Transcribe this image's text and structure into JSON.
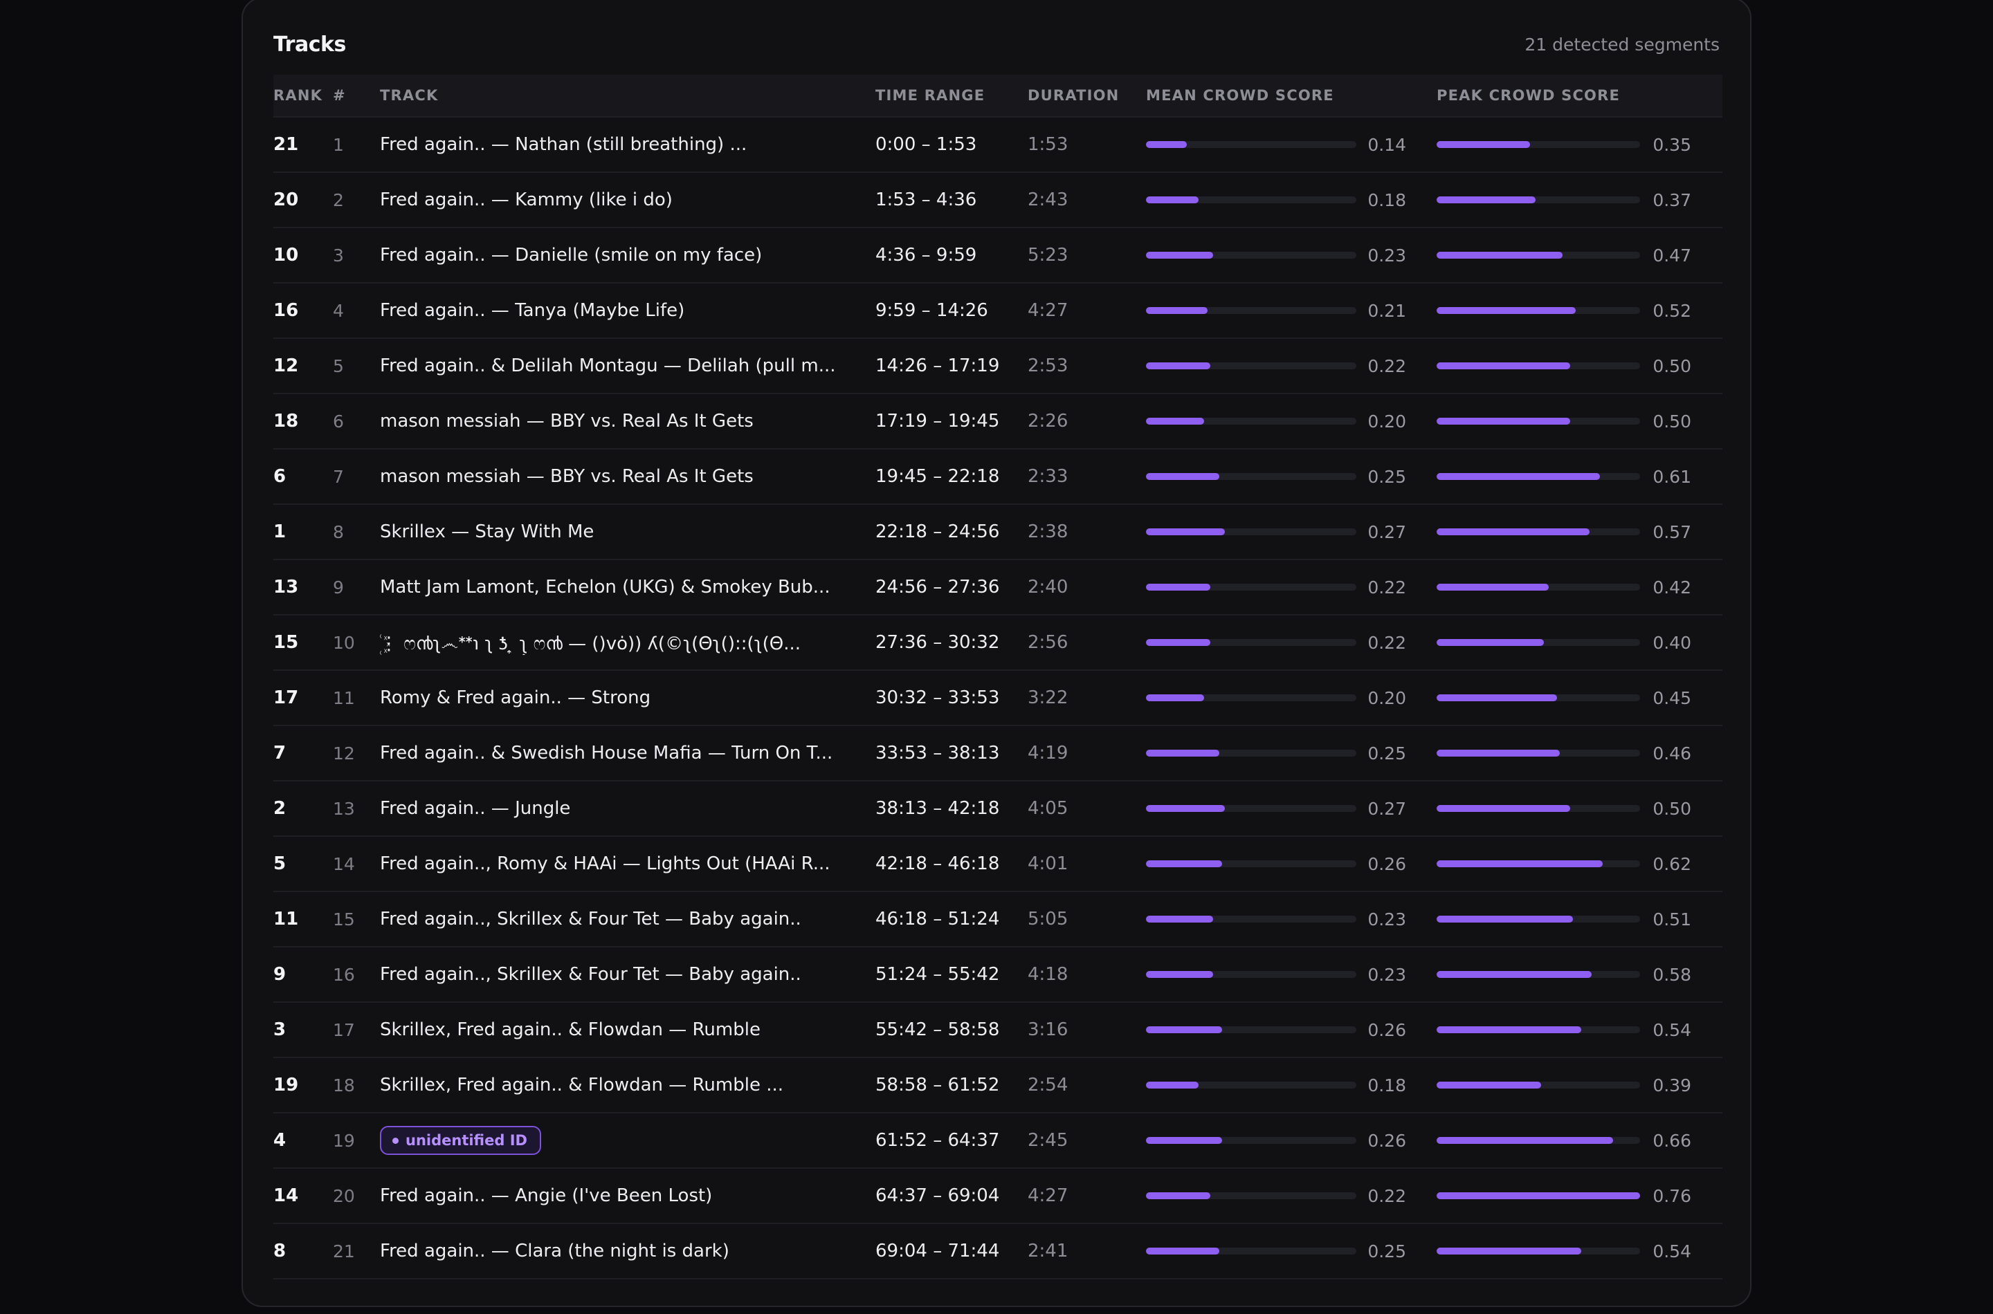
{
  "panel": {
    "title": "Tracks",
    "segment_count": "21 detected segments"
  },
  "columns": {
    "rank": "RANK",
    "num": "#",
    "track": "TRACK",
    "time_range": "TIME RANGE",
    "duration": "DURATION",
    "mean": "MEAN CROWD SCORE",
    "peak": "PEAK CROWD SCORE"
  },
  "accent_color": "#8e5ff0",
  "rows": [
    {
      "rank": "21",
      "num": "1",
      "track": "Fred again.. — Nathan (still breathing) ...",
      "time": "0:00 – 1:53",
      "duration": "1:53",
      "mean": "0.14",
      "peak": "0.35"
    },
    {
      "rank": "20",
      "num": "2",
      "track": "Fred again.. — Kammy (like i do)",
      "time": "1:53 – 4:36",
      "duration": "2:43",
      "mean": "0.18",
      "peak": "0.37"
    },
    {
      "rank": "10",
      "num": "3",
      "track": "Fred again.. — Danielle (smile on my face)",
      "time": "4:36 – 9:59",
      "duration": "5:23",
      "mean": "0.23",
      "peak": "0.47"
    },
    {
      "rank": "16",
      "num": "4",
      "track": "Fred again.. — Tanya (Maybe Life)",
      "time": "9:59 – 14:26",
      "duration": "4:27",
      "mean": "0.21",
      "peak": "0.52"
    },
    {
      "rank": "12",
      "num": "5",
      "track": "Fred again.. & Delilah Montagu — Delilah (pull m...",
      "time": "14:26 – 17:19",
      "duration": "2:53",
      "mean": "0.22",
      "peak": "0.50"
    },
    {
      "rank": "18",
      "num": "6",
      "track": "mason messiah — BBY vs. Real As It Gets",
      "time": "17:19 – 19:45",
      "duration": "2:26",
      "mean": "0.20",
      "peak": "0.50"
    },
    {
      "rank": "6",
      "num": "7",
      "track": "mason messiah — BBY vs. Real As It Gets",
      "time": "19:45 – 22:18",
      "duration": "2:33",
      "mean": "0.25",
      "peak": "0.61"
    },
    {
      "rank": "1",
      "num": "8",
      "track": "Skrillex — Stay With Me",
      "time": "22:18 – 24:56",
      "duration": "2:38",
      "mean": "0.27",
      "peak": "0.57"
    },
    {
      "rank": "13",
      "num": "9",
      "track": "Matt Jam Lamont, Echelon (UKG) & Smokey Bub...",
      "time": "24:56 – 27:36",
      "duration": "2:40",
      "mean": "0.22",
      "peak": "0.42"
    },
    {
      "rank": "15",
      "num": "10",
      "track": "꙰⋮ ෆ൯ʅ෴ᕯ℩ ʅ ƾ ͎ ʅ͎͎͎ ෆ൯ — ()vȯ))  ʎ(©ʅ(Θʅ()::(ʅ(Θ...",
      "time": "27:36 – 30:32",
      "duration": "2:56",
      "mean": "0.22",
      "peak": "0.40"
    },
    {
      "rank": "17",
      "num": "11",
      "track": "Romy & Fred again.. — Strong",
      "time": "30:32 – 33:53",
      "duration": "3:22",
      "mean": "0.20",
      "peak": "0.45"
    },
    {
      "rank": "7",
      "num": "12",
      "track": "Fred again.. & Swedish House Mafia — Turn On T...",
      "time": "33:53 – 38:13",
      "duration": "4:19",
      "mean": "0.25",
      "peak": "0.46"
    },
    {
      "rank": "2",
      "num": "13",
      "track": "Fred again.. — Jungle",
      "time": "38:13 – 42:18",
      "duration": "4:05",
      "mean": "0.27",
      "peak": "0.50"
    },
    {
      "rank": "5",
      "num": "14",
      "track": "Fred again.., Romy & HAAi — Lights Out (HAAi R...",
      "time": "42:18 – 46:18",
      "duration": "4:01",
      "mean": "0.26",
      "peak": "0.62"
    },
    {
      "rank": "11",
      "num": "15",
      "track": "Fred again.., Skrillex & Four Tet — Baby again..",
      "time": "46:18 – 51:24",
      "duration": "5:05",
      "mean": "0.23",
      "peak": "0.51"
    },
    {
      "rank": "9",
      "num": "16",
      "track": "Fred again.., Skrillex & Four Tet — Baby again..",
      "time": "51:24 – 55:42",
      "duration": "4:18",
      "mean": "0.23",
      "peak": "0.58"
    },
    {
      "rank": "3",
      "num": "17",
      "track": "Skrillex, Fred again.. & Flowdan — Rumble",
      "time": "55:42 – 58:58",
      "duration": "3:16",
      "mean": "0.26",
      "peak": "0.54"
    },
    {
      "rank": "19",
      "num": "18",
      "track": "Skrillex, Fred again.. & Flowdan — Rumble ...",
      "time": "58:58 – 61:52",
      "duration": "2:54",
      "mean": "0.18",
      "peak": "0.39"
    },
    {
      "rank": "4",
      "num": "19",
      "track": "",
      "badge": "unidentified ID",
      "time": "61:52 – 64:37",
      "duration": "2:45",
      "mean": "0.26",
      "peak": "0.66"
    },
    {
      "rank": "14",
      "num": "20",
      "track": "Fred again.. — Angie (I've Been Lost)",
      "time": "64:37 – 69:04",
      "duration": "4:27",
      "mean": "0.22",
      "peak": "0.76"
    },
    {
      "rank": "8",
      "num": "21",
      "track": "Fred again.. — Clara (the night is dark)",
      "time": "69:04 – 71:44",
      "duration": "2:41",
      "mean": "0.25",
      "peak": "0.54"
    }
  ]
}
